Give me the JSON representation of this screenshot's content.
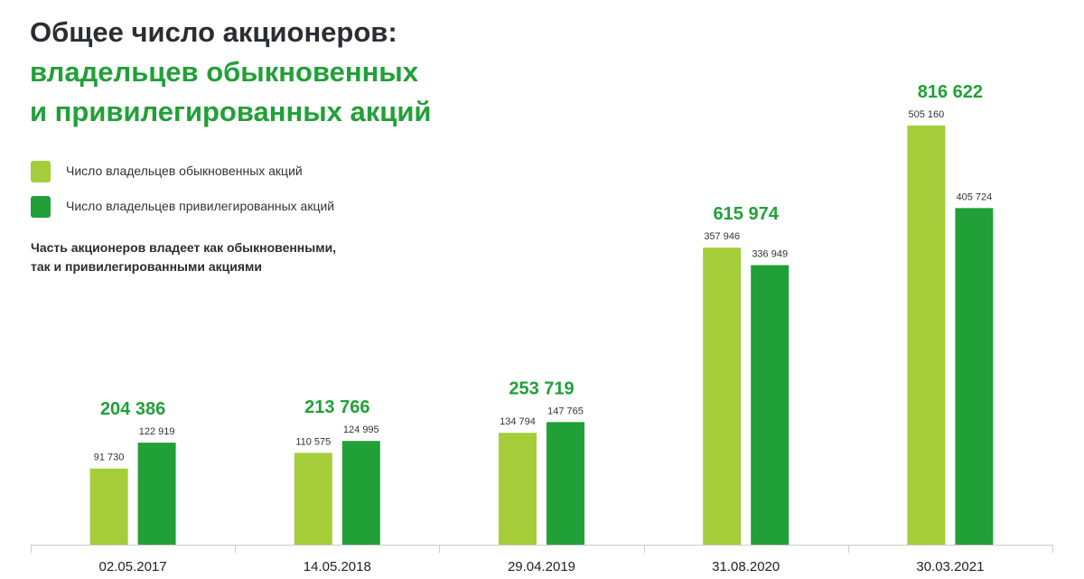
{
  "title": {
    "line1": "Общее число акционеров:",
    "line2": "владельцев обыкновенных",
    "line3": "и привилегированных акций"
  },
  "colors": {
    "ordinary": "#a4cd39",
    "preferred": "#21a038",
    "total": "#21a038",
    "title_dark": "#2b2d33",
    "axis": "#cccccc"
  },
  "legend": {
    "ordinary": "Число владельцев обыкновенных акций",
    "preferred": "Число владельцев привилегированных акций"
  },
  "note": {
    "line1": "Часть акционеров владеет как обыкновенными,",
    "line2": "так и привилегированными акциями"
  },
  "chart_data": {
    "type": "bar",
    "categories": [
      "02.05.2017",
      "14.05.2018",
      "29.04.2019",
      "31.08.2020",
      "30.03.2021"
    ],
    "series": [
      {
        "name": "Число владельцев обыкновенных акций",
        "values": [
          91730,
          110575,
          134794,
          357946,
          505160
        ],
        "labels": [
          "91 730",
          "110 575",
          "134 794",
          "357 946",
          "505 160"
        ]
      },
      {
        "name": "Число владельцев привилегированных акций",
        "values": [
          122919,
          124995,
          147765,
          336949,
          405724
        ],
        "labels": [
          "122 919",
          "124 995",
          "147 765",
          "336 949",
          "405 724"
        ]
      }
    ],
    "totals": [
      204386,
      213766,
      253719,
      615974,
      816622
    ],
    "total_labels": [
      "204 386",
      "213 766",
      "253 719",
      "615 974",
      "816 622"
    ],
    "ylim": [
      0,
      505160
    ]
  }
}
